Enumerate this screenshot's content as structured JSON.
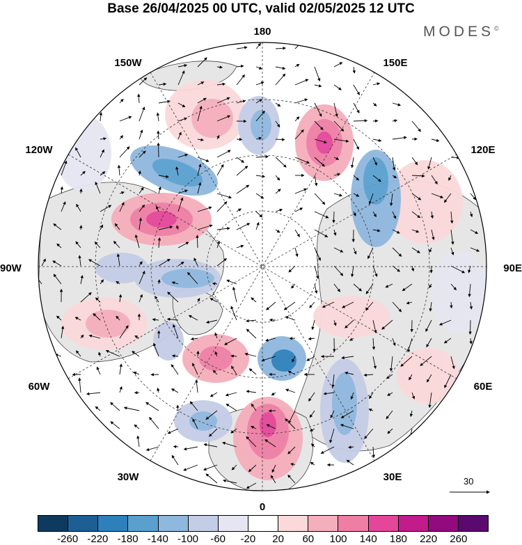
{
  "title": "Base 26/04/2025 00 UTC, valid 02/05/2025 12 UTC",
  "brand": {
    "name": "MODES",
    "mark": "©"
  },
  "longitude_labels": {
    "top": "180",
    "bottom": "0",
    "left": "90W",
    "right": "90E",
    "upper_left_1": "150W",
    "upper_left_2": "120W",
    "upper_right_1": "150E",
    "upper_right_2": "120E",
    "lower_left_1": "60W",
    "lower_left_2": "30W",
    "lower_right_1": "60E",
    "lower_right_2": "30E"
  },
  "vector_reference": {
    "value": "30"
  },
  "colorbar": {
    "colors": [
      "#0f3a5f",
      "#1d5f94",
      "#2e80bb",
      "#5aa0cf",
      "#8fb8de",
      "#c4cde6",
      "#e6e6f2",
      "#ffffff",
      "#fbd9db",
      "#f5aebb",
      "#ef7ea5",
      "#e4469a",
      "#c21b8b",
      "#93097e",
      "#5a0a6e"
    ],
    "labels": [
      "-260",
      "-220",
      "-180",
      "-140",
      "-100",
      "-60",
      "-20",
      "20",
      "60",
      "100",
      "140",
      "180",
      "220",
      "260"
    ]
  },
  "colors": {
    "land_shade": "#e6e6e6",
    "coast": "#444444",
    "grid": "#333333"
  }
}
